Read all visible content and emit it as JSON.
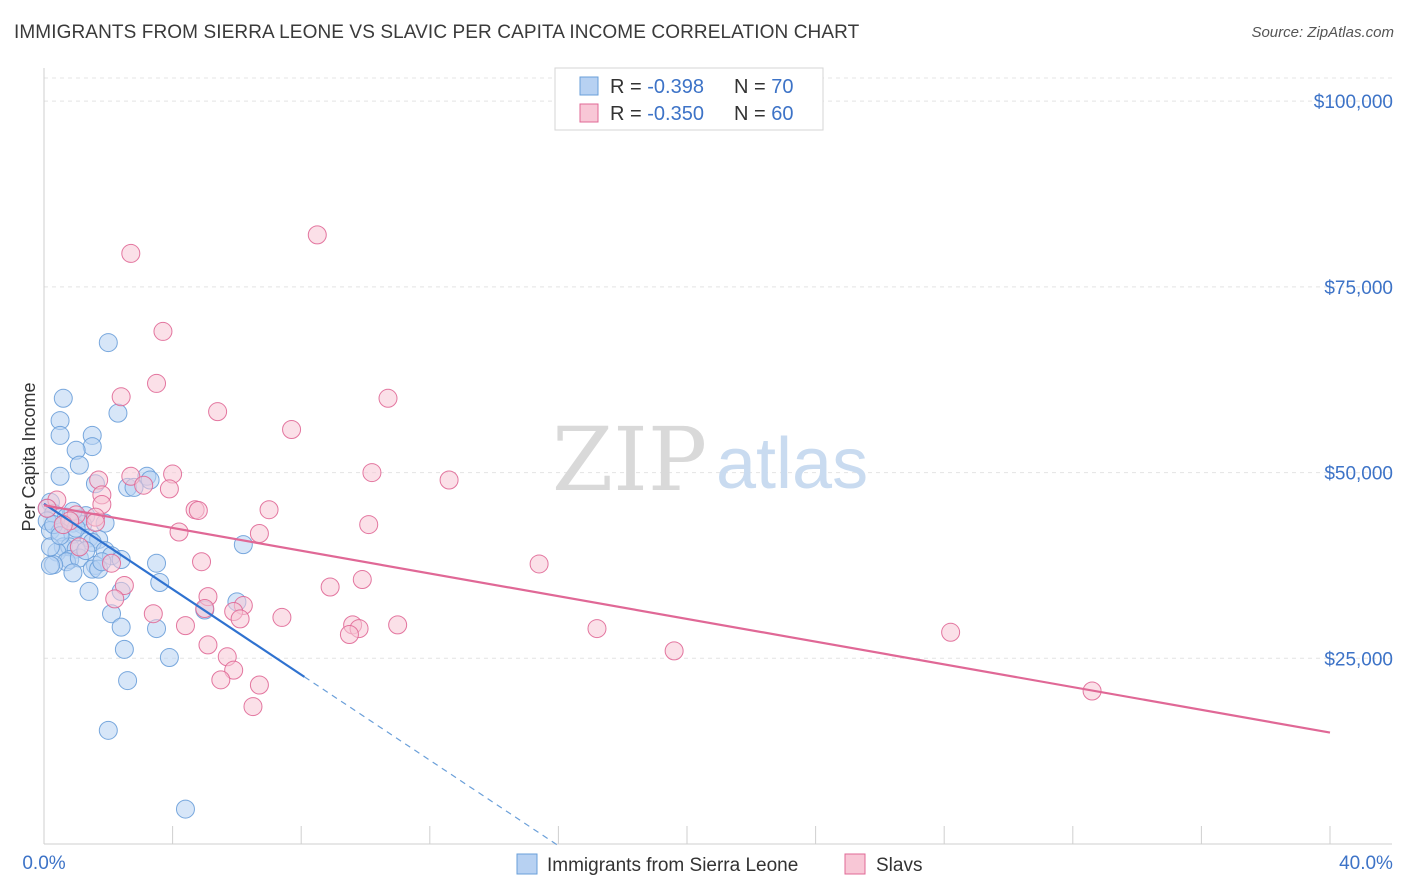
{
  "title": "IMMIGRANTS FROM SIERRA LEONE VS SLAVIC PER CAPITA INCOME CORRELATION CHART",
  "source": "Source: ZipAtlas.com",
  "watermark": {
    "zip": "ZIP",
    "atlas": "atlas"
  },
  "chart_data": {
    "type": "scatter",
    "ylabel": "Per Capita Income",
    "xlim": [
      0,
      40
    ],
    "ylim": [
      0,
      105000
    ],
    "x_tick_labels": [
      "0.0%",
      "40.0%"
    ],
    "y_ticks": [
      {
        "value": 25000,
        "label": "$25,000"
      },
      {
        "value": 50000,
        "label": "$50,000"
      },
      {
        "value": 75000,
        "label": "$75,000"
      },
      {
        "value": 100000,
        "label": "$100,000"
      }
    ],
    "legend": [
      {
        "r_label": "R = ",
        "r": "-0.398",
        "n_label": "N = ",
        "n": "70"
      },
      {
        "r_label": "R = ",
        "r": "-0.350",
        "n_label": "N = ",
        "n": "60"
      }
    ],
    "series": [
      {
        "name": "Immigrants from Sierra Leone",
        "color": "#6a9fd9",
        "fill": "#b7d1f2",
        "trend": {
          "x0": 0.0,
          "y0": 45800,
          "x1": 8.1,
          "y1": 22500,
          "dash_to_x": 16.0
        },
        "points": [
          [
            0.6,
            60000
          ],
          [
            0.5,
            57000
          ],
          [
            0.5,
            55000
          ],
          [
            1.5,
            55000
          ],
          [
            1.5,
            53500
          ],
          [
            1.0,
            53000
          ],
          [
            1.1,
            51000
          ],
          [
            0.5,
            49500
          ],
          [
            1.6,
            48500
          ],
          [
            3.2,
            49500
          ],
          [
            3.3,
            49000
          ],
          [
            2.6,
            48000
          ],
          [
            0.2,
            46000
          ],
          [
            0.1,
            45200
          ],
          [
            0.3,
            44500
          ],
          [
            0.7,
            44000
          ],
          [
            1.3,
            44200
          ],
          [
            0.1,
            43500
          ],
          [
            0.6,
            43000
          ],
          [
            0.9,
            43200
          ],
          [
            1.1,
            43800
          ],
          [
            1.2,
            43000
          ],
          [
            1.9,
            43200
          ],
          [
            0.2,
            42200
          ],
          [
            0.5,
            42000
          ],
          [
            0.9,
            41700
          ],
          [
            1.4,
            41200
          ],
          [
            1.7,
            41000
          ],
          [
            1.5,
            40600
          ],
          [
            0.6,
            40000
          ],
          [
            0.8,
            40000
          ],
          [
            1.0,
            39700
          ],
          [
            1.9,
            39500
          ],
          [
            0.4,
            39300
          ],
          [
            2.1,
            38800
          ],
          [
            0.8,
            38300
          ],
          [
            0.7,
            38000
          ],
          [
            1.1,
            38500
          ],
          [
            0.3,
            37600
          ],
          [
            0.2,
            37500
          ],
          [
            1.6,
            37500
          ],
          [
            1.5,
            37000
          ],
          [
            3.5,
            37800
          ],
          [
            1.7,
            37000
          ],
          [
            0.9,
            36500
          ],
          [
            6.2,
            40300
          ],
          [
            2.4,
            38300
          ],
          [
            3.6,
            35200
          ],
          [
            1.4,
            34000
          ],
          [
            2.4,
            34000
          ],
          [
            6.0,
            32600
          ],
          [
            5.0,
            31500
          ],
          [
            2.1,
            31000
          ],
          [
            2.4,
            29200
          ],
          [
            3.5,
            29000
          ],
          [
            2.5,
            26200
          ],
          [
            3.9,
            25100
          ],
          [
            2.6,
            22000
          ],
          [
            2.0,
            15300
          ],
          [
            4.4,
            4700
          ],
          [
            2.0,
            67500
          ],
          [
            2.3,
            58000
          ],
          [
            0.3,
            43000
          ],
          [
            1.0,
            42500
          ],
          [
            0.2,
            40000
          ],
          [
            1.8,
            38000
          ],
          [
            0.5,
            41500
          ],
          [
            1.3,
            39500
          ],
          [
            2.8,
            48000
          ],
          [
            0.9,
            44800
          ]
        ]
      },
      {
        "name": "Slavs",
        "color": "#e06896",
        "fill": "#f8c7d6",
        "trend": {
          "x0": 0.0,
          "y0": 45600,
          "x1": 40.0,
          "y1": 15000
        },
        "points": [
          [
            8.5,
            82000
          ],
          [
            2.7,
            79500
          ],
          [
            3.7,
            69000
          ],
          [
            3.5,
            62000
          ],
          [
            2.4,
            60200
          ],
          [
            10.7,
            60000
          ],
          [
            5.4,
            58200
          ],
          [
            7.7,
            55800
          ],
          [
            2.7,
            49500
          ],
          [
            4.0,
            49800
          ],
          [
            10.2,
            50000
          ],
          [
            12.6,
            49000
          ],
          [
            1.7,
            49000
          ],
          [
            3.1,
            48300
          ],
          [
            3.9,
            47800
          ],
          [
            1.8,
            47000
          ],
          [
            0.4,
            46300
          ],
          [
            1.8,
            45700
          ],
          [
            0.1,
            45200
          ],
          [
            1.0,
            44300
          ],
          [
            0.8,
            43500
          ],
          [
            1.6,
            44000
          ],
          [
            4.7,
            45000
          ],
          [
            4.8,
            44900
          ],
          [
            7.0,
            45000
          ],
          [
            0.6,
            43000
          ],
          [
            1.6,
            43300
          ],
          [
            10.1,
            43000
          ],
          [
            4.2,
            42000
          ],
          [
            6.7,
            41800
          ],
          [
            1.1,
            40000
          ],
          [
            4.9,
            38000
          ],
          [
            2.1,
            37800
          ],
          [
            15.4,
            37700
          ],
          [
            9.9,
            35600
          ],
          [
            2.5,
            34800
          ],
          [
            8.9,
            34600
          ],
          [
            2.2,
            33000
          ],
          [
            5.1,
            33300
          ],
          [
            5.0,
            31700
          ],
          [
            6.2,
            32100
          ],
          [
            5.9,
            31300
          ],
          [
            3.4,
            31000
          ],
          [
            7.4,
            30500
          ],
          [
            6.1,
            30300
          ],
          [
            4.4,
            29400
          ],
          [
            9.6,
            29500
          ],
          [
            9.8,
            29000
          ],
          [
            11.0,
            29500
          ],
          [
            17.2,
            29000
          ],
          [
            28.2,
            28500
          ],
          [
            9.5,
            28200
          ],
          [
            5.1,
            26800
          ],
          [
            19.6,
            26000
          ],
          [
            5.7,
            25200
          ],
          [
            5.9,
            23400
          ],
          [
            5.5,
            22100
          ],
          [
            6.7,
            21400
          ],
          [
            6.5,
            18500
          ],
          [
            32.6,
            20600
          ]
        ]
      }
    ]
  }
}
